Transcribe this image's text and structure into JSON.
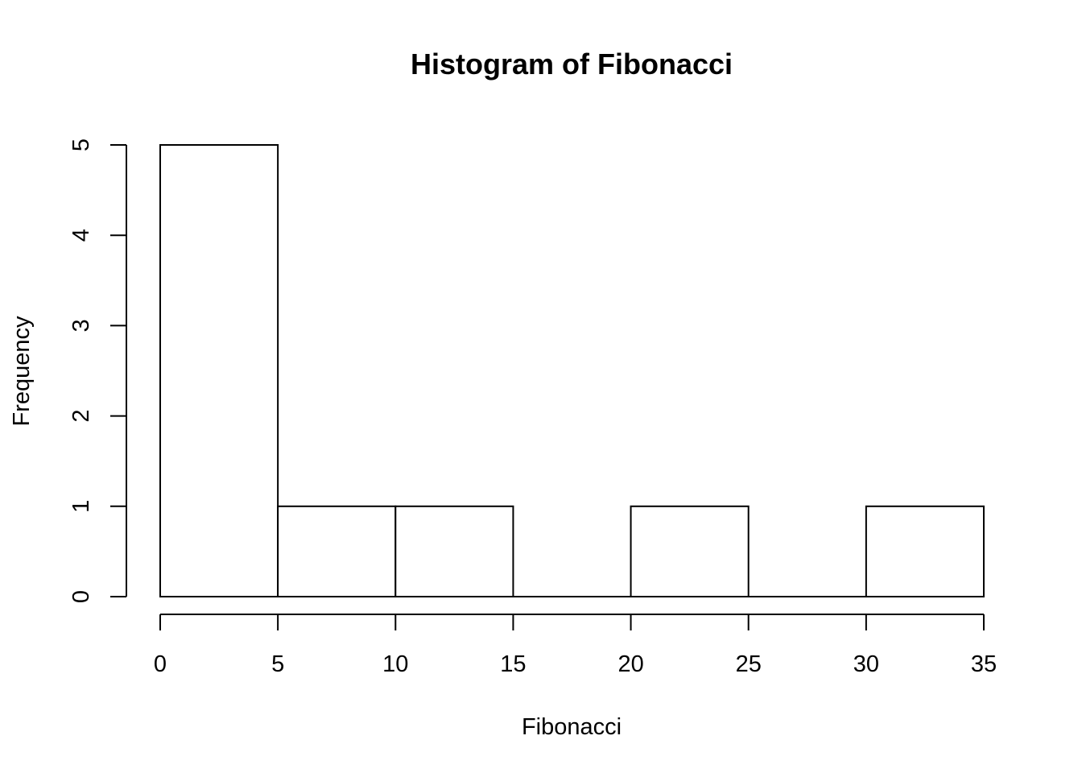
{
  "chart_data": {
    "type": "bar",
    "title": "Histogram of Fibonacci",
    "xlabel": "Fibonacci",
    "ylabel": "Frequency",
    "bins": [
      {
        "start": 0,
        "end": 5,
        "count": 5
      },
      {
        "start": 5,
        "end": 10,
        "count": 1
      },
      {
        "start": 10,
        "end": 15,
        "count": 1
      },
      {
        "start": 15,
        "end": 20,
        "count": 0
      },
      {
        "start": 20,
        "end": 25,
        "count": 1
      },
      {
        "start": 25,
        "end": 30,
        "count": 0
      },
      {
        "start": 30,
        "end": 35,
        "count": 1
      }
    ],
    "xlim": [
      0,
      35
    ],
    "ylim": [
      0,
      5
    ],
    "x_ticks": [
      0,
      5,
      10,
      15,
      20,
      25,
      30,
      35
    ],
    "y_ticks": [
      0,
      1,
      2,
      3,
      4,
      5
    ],
    "grid": false,
    "colors": {
      "bar_fill": "#ffffff",
      "bar_stroke": "#000000"
    }
  }
}
